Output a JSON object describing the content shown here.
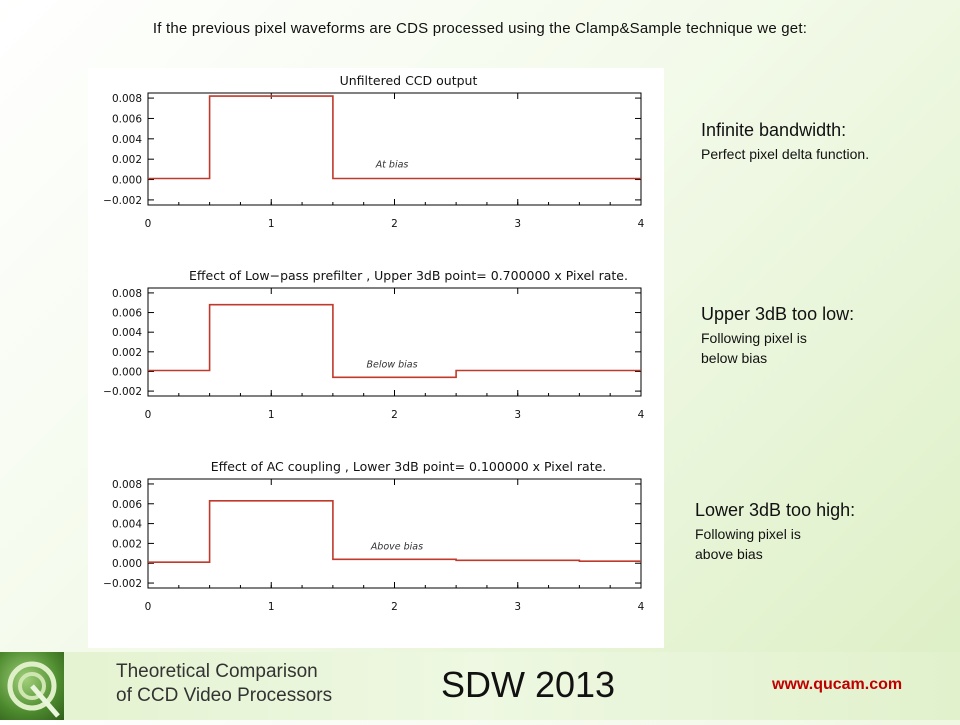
{
  "heading": "If the previous pixel waveforms are CDS processed using the Clamp&Sample technique we get:",
  "chart_data": [
    {
      "type": "line",
      "title": "Unfiltered CCD output",
      "xlabel": "",
      "ylabel": "",
      "xlim": [
        0,
        4
      ],
      "ylim": [
        -0.0025,
        0.0085
      ],
      "x_ticks": [
        "0",
        "1",
        "2",
        "3",
        "4"
      ],
      "y_ticks": [
        {
          "v": 0.008,
          "label": "0.008"
        },
        {
          "v": 0.006,
          "label": "0.006"
        },
        {
          "v": 0.004,
          "label": "0.004"
        },
        {
          "v": 0.002,
          "label": "0.002"
        },
        {
          "v": 0.0,
          "label": "0.000"
        },
        {
          "v": -0.002,
          "label": "−0.002"
        }
      ],
      "grid": false,
      "series": [
        {
          "x": [
            0,
            0.5,
            0.5,
            1.5,
            1.5,
            4.0
          ],
          "y": [
            0.0001,
            0.0001,
            0.0082,
            0.0082,
            0.0001,
            0.0001
          ],
          "color": "#c0392b"
        }
      ],
      "annotation": {
        "x": 1.98,
        "y": 0.0009,
        "text": "At bias"
      }
    },
    {
      "type": "line",
      "title": "Effect of Low−pass prefilter , Upper 3dB point=     0.700000 x Pixel rate.",
      "xlabel": "",
      "ylabel": "",
      "xlim": [
        0,
        4
      ],
      "ylim": [
        -0.0025,
        0.0085
      ],
      "x_ticks": [
        "0",
        "1",
        "2",
        "3",
        "4"
      ],
      "y_ticks": [
        {
          "v": 0.008,
          "label": "0.008"
        },
        {
          "v": 0.006,
          "label": "0.006"
        },
        {
          "v": 0.004,
          "label": "0.004"
        },
        {
          "v": 0.002,
          "label": "0.002"
        },
        {
          "v": 0.0,
          "label": "0.000"
        },
        {
          "v": -0.002,
          "label": "−0.002"
        }
      ],
      "grid": false,
      "series": [
        {
          "x": [
            0,
            0.5,
            0.5,
            1.5,
            1.5,
            2.5,
            2.5,
            4.0
          ],
          "y": [
            0.0001,
            0.0001,
            0.0068,
            0.0068,
            -0.0006,
            -0.0006,
            0.0001,
            0.0001
          ],
          "color": "#c0392b"
        }
      ],
      "annotation": {
        "x": 1.98,
        "y": 0.0001,
        "text": "Below bias"
      }
    },
    {
      "type": "line",
      "title": "Effect of AC coupling , Lower 3dB point=     0.100000 x Pixel rate.",
      "xlabel": "",
      "ylabel": "",
      "xlim": [
        0,
        4
      ],
      "ylim": [
        -0.0025,
        0.0085
      ],
      "x_ticks": [
        "0",
        "1",
        "2",
        "3",
        "4"
      ],
      "y_ticks": [
        {
          "v": 0.008,
          "label": "0.008"
        },
        {
          "v": 0.006,
          "label": "0.006"
        },
        {
          "v": 0.004,
          "label": "0.004"
        },
        {
          "v": 0.002,
          "label": "0.002"
        },
        {
          "v": 0.0,
          "label": "0.000"
        },
        {
          "v": -0.002,
          "label": "−0.002"
        }
      ],
      "grid": false,
      "series": [
        {
          "x": [
            0,
            0.5,
            0.5,
            1.5,
            1.5,
            2.5,
            2.5,
            3.5,
            3.5,
            4.0
          ],
          "y": [
            0.0001,
            0.0001,
            0.0063,
            0.0063,
            0.0004,
            0.0004,
            0.0003,
            0.0003,
            0.0002,
            0.0002
          ],
          "color": "#c0392b"
        }
      ],
      "annotation": {
        "x": 2.02,
        "y": 0.0011,
        "text": "Above bias"
      }
    }
  ],
  "notes": [
    {
      "heading": "Infinite bandwidth:",
      "lines": [
        "Perfect pixel delta function."
      ]
    },
    {
      "heading": "Upper 3dB too low:",
      "lines": [
        "Following pixel is",
        "below bias"
      ]
    },
    {
      "heading": "Lower 3dB too high:",
      "lines": [
        "Following pixel is",
        "above bias"
      ]
    }
  ],
  "footer": {
    "subtitle_line1": "Theoretical Comparison",
    "subtitle_line2": "of CCD Video Processors",
    "event": "SDW 2013",
    "url": "www.qucam.com"
  }
}
